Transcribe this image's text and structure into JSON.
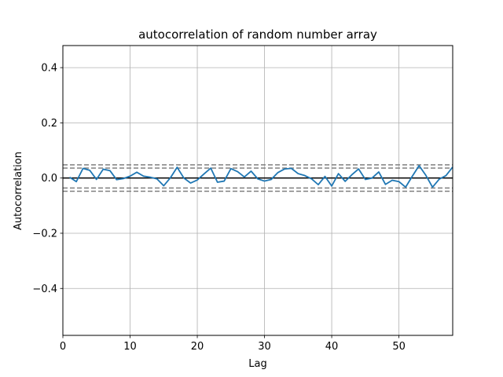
{
  "chart_data": {
    "type": "line",
    "title": "autocorrelation of random number array",
    "xlabel": "Lag",
    "ylabel": "Autocorrelation",
    "xlim": [
      0,
      58
    ],
    "ylim": [
      -0.57,
      0.48
    ],
    "xticks": [
      0,
      10,
      20,
      30,
      40,
      50
    ],
    "xtick_labels": [
      "0",
      "10",
      "20",
      "30",
      "40",
      "50"
    ],
    "yticks": [
      -0.4,
      -0.2,
      0.0,
      0.2,
      0.4
    ],
    "ytick_labels": [
      "−0.4",
      "−0.2",
      "0.0",
      "0.2",
      "0.4"
    ],
    "grid": true,
    "zero_line": 0.0,
    "confidence_bands": [
      0.048,
      -0.048,
      0.036,
      -0.036
    ],
    "series": [
      {
        "color": "#1f77b4",
        "x": [
          1,
          2,
          3,
          4,
          5,
          6,
          7,
          8,
          9,
          10,
          11,
          12,
          13,
          14,
          15,
          16,
          17,
          18,
          19,
          20,
          21,
          22,
          23,
          24,
          25,
          26,
          27,
          28,
          29,
          30,
          31,
          32,
          33,
          34,
          35,
          36,
          37,
          38,
          39,
          40,
          41,
          42,
          43,
          44,
          45,
          46,
          47,
          48,
          49,
          50,
          51,
          52,
          53,
          54,
          55,
          56,
          57,
          58
        ],
        "values": [
          0.003,
          -0.013,
          0.035,
          0.028,
          -0.005,
          0.032,
          0.027,
          -0.006,
          -0.002,
          0.007,
          0.021,
          0.007,
          0.003,
          -0.003,
          -0.028,
          0.001,
          0.039,
          0.0,
          -0.018,
          -0.007,
          0.015,
          0.036,
          -0.015,
          -0.011,
          0.034,
          0.023,
          0.004,
          0.025,
          -0.003,
          -0.011,
          -0.005,
          0.02,
          0.033,
          0.035,
          0.016,
          0.009,
          -0.003,
          -0.024,
          0.006,
          -0.029,
          0.016,
          -0.012,
          0.012,
          0.033,
          -0.005,
          0.0,
          0.022,
          -0.023,
          -0.008,
          -0.013,
          -0.033,
          0.007,
          0.045,
          0.01,
          -0.033,
          -0.004,
          0.009,
          0.04
        ]
      }
    ]
  }
}
